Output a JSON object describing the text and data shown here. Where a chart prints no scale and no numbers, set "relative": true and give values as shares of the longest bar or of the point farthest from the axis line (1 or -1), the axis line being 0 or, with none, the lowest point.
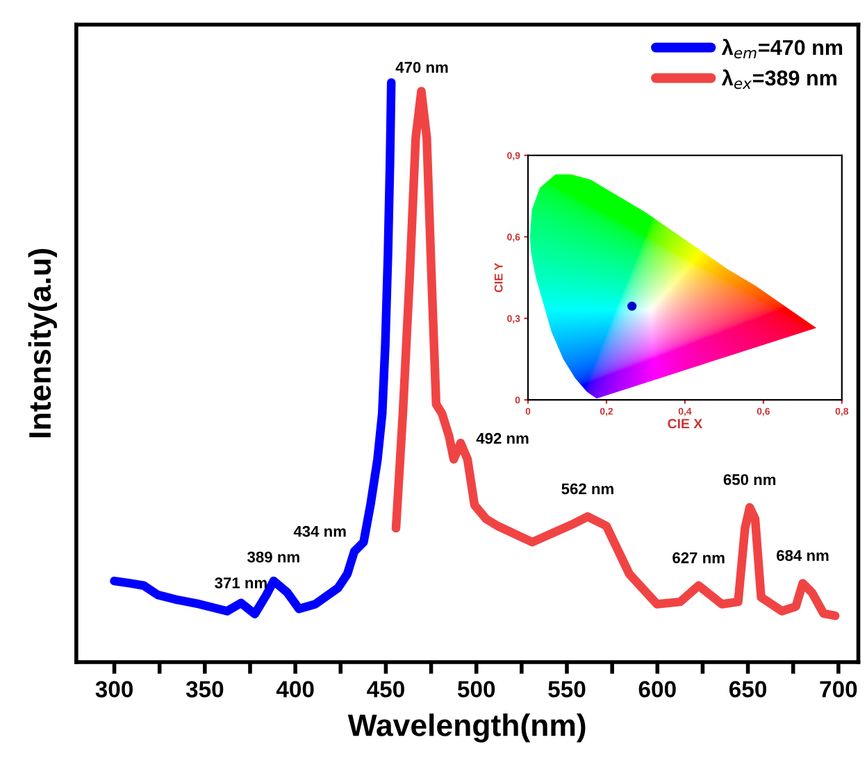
{
  "chart_data": [
    {
      "type": "line",
      "xlabel": "Wavelength(nm)",
      "ylabel": "Intensity(a.u)",
      "relative": true,
      "xlim": [
        279,
        711
      ],
      "xticks": [
        300,
        {
          "value": 325,
          "label": null
        },
        350,
        {
          "value": 375,
          "label": null
        },
        400,
        {
          "value": 425,
          "label": null
        },
        450,
        {
          "value": 475,
          "label": null
        },
        500,
        {
          "value": 525,
          "label": null
        },
        550,
        {
          "value": 575,
          "label": null
        },
        600,
        {
          "value": 625,
          "label": null
        },
        650,
        {
          "value": 675,
          "label": null
        },
        700
      ],
      "legend": "top right",
      "grid": false,
      "line_style": "solid",
      "marker": "none",
      "series": [
        {
          "name": "λ$_{em}$=470 nm",
          "color": "#0000ff",
          "x": [
            300,
            308.7,
            316.3,
            324,
            334,
            347,
            362.3,
            370,
            377.6,
            384,
            388,
            395.6,
            402,
            411,
            423.6,
            428.7,
            432.6,
            437.7,
            441.5,
            445.4,
            448,
            449.7,
            451.2,
            452.3,
            453
          ],
          "values": [
            0.14,
            0.136,
            0.132,
            0.116,
            0.108,
            0.1,
            0.088,
            0.102,
            0.083,
            0.116,
            0.14,
            0.12,
            0.092,
            0.1,
            0.128,
            0.152,
            0.191,
            0.207,
            0.271,
            0.35,
            0.429,
            0.548,
            0.707,
            0.866,
            1.0
          ]
        },
        {
          "name": "λ$_{ex}$=389 nm",
          "color": "#f04444",
          "x": [
            455.6,
            459.4,
            463.2,
            466.5,
            469.6,
            472.6,
            475.2,
            477.8,
            481,
            484.9,
            487.5,
            491.3,
            495.1,
            499,
            505.4,
            511.7,
            530.9,
            553.9,
            561.5,
            571.8,
            584.5,
            599.8,
            612.6,
            622.8,
            635.6,
            644.6,
            648.4,
            651,
            654,
            657.3,
            668.8,
            676.5,
            680.3,
            685.4,
            691.8,
            698.2
          ],
          "values": [
            0.231,
            0.429,
            0.667,
            0.905,
            0.985,
            0.905,
            0.667,
            0.445,
            0.429,
            0.39,
            0.35,
            0.378,
            0.35,
            0.271,
            0.247,
            0.235,
            0.207,
            0.239,
            0.251,
            0.235,
            0.152,
            0.1,
            0.104,
            0.132,
            0.1,
            0.104,
            0.231,
            0.267,
            0.247,
            0.112,
            0.088,
            0.096,
            0.136,
            0.12,
            0.084,
            0.08
          ]
        }
      ],
      "annotations": [
        {
          "text": "371 nm",
          "x": 370,
          "y": 0.102
        },
        {
          "text": "389 nm",
          "x": 388,
          "y": 0.14
        },
        {
          "text": "434 nm",
          "x": 432.6,
          "y": 0.191
        },
        {
          "text": "470 nm",
          "x": 470,
          "y": 0.985
        },
        {
          "text": "492 nm",
          "x": 491.3,
          "y": 0.378
        },
        {
          "text": "562 nm",
          "x": 561.5,
          "y": 0.251
        },
        {
          "text": "627 nm",
          "x": 622.8,
          "y": 0.132
        },
        {
          "text": "650 nm",
          "x": 651,
          "y": 0.267
        },
        {
          "text": "684 nm",
          "x": 680.3,
          "y": 0.136
        }
      ]
    },
    {
      "type": "scatter",
      "xlabel": "CIE X",
      "ylabel": "CIE Y",
      "xlim": [
        0,
        0.8
      ],
      "ylim": [
        0,
        0.9
      ],
      "xticks": [
        0,
        {
          "value": 0.2,
          "label": "0,2"
        },
        {
          "value": 0.4,
          "label": "0,4"
        },
        {
          "value": 0.6,
          "label": "0,6"
        },
        {
          "value": 0.8,
          "label": "0,8"
        }
      ],
      "yticks": [
        0,
        {
          "value": 0.3,
          "label": "0,3"
        },
        {
          "value": 0.6,
          "label": "0,6"
        },
        {
          "value": 0.9,
          "label": "0,9"
        }
      ],
      "grid": false,
      "marker": "circle",
      "series": [
        {
          "color": "#0000cc",
          "x": [
            0.265
          ],
          "values": [
            0.345
          ]
        }
      ]
    }
  ]
}
